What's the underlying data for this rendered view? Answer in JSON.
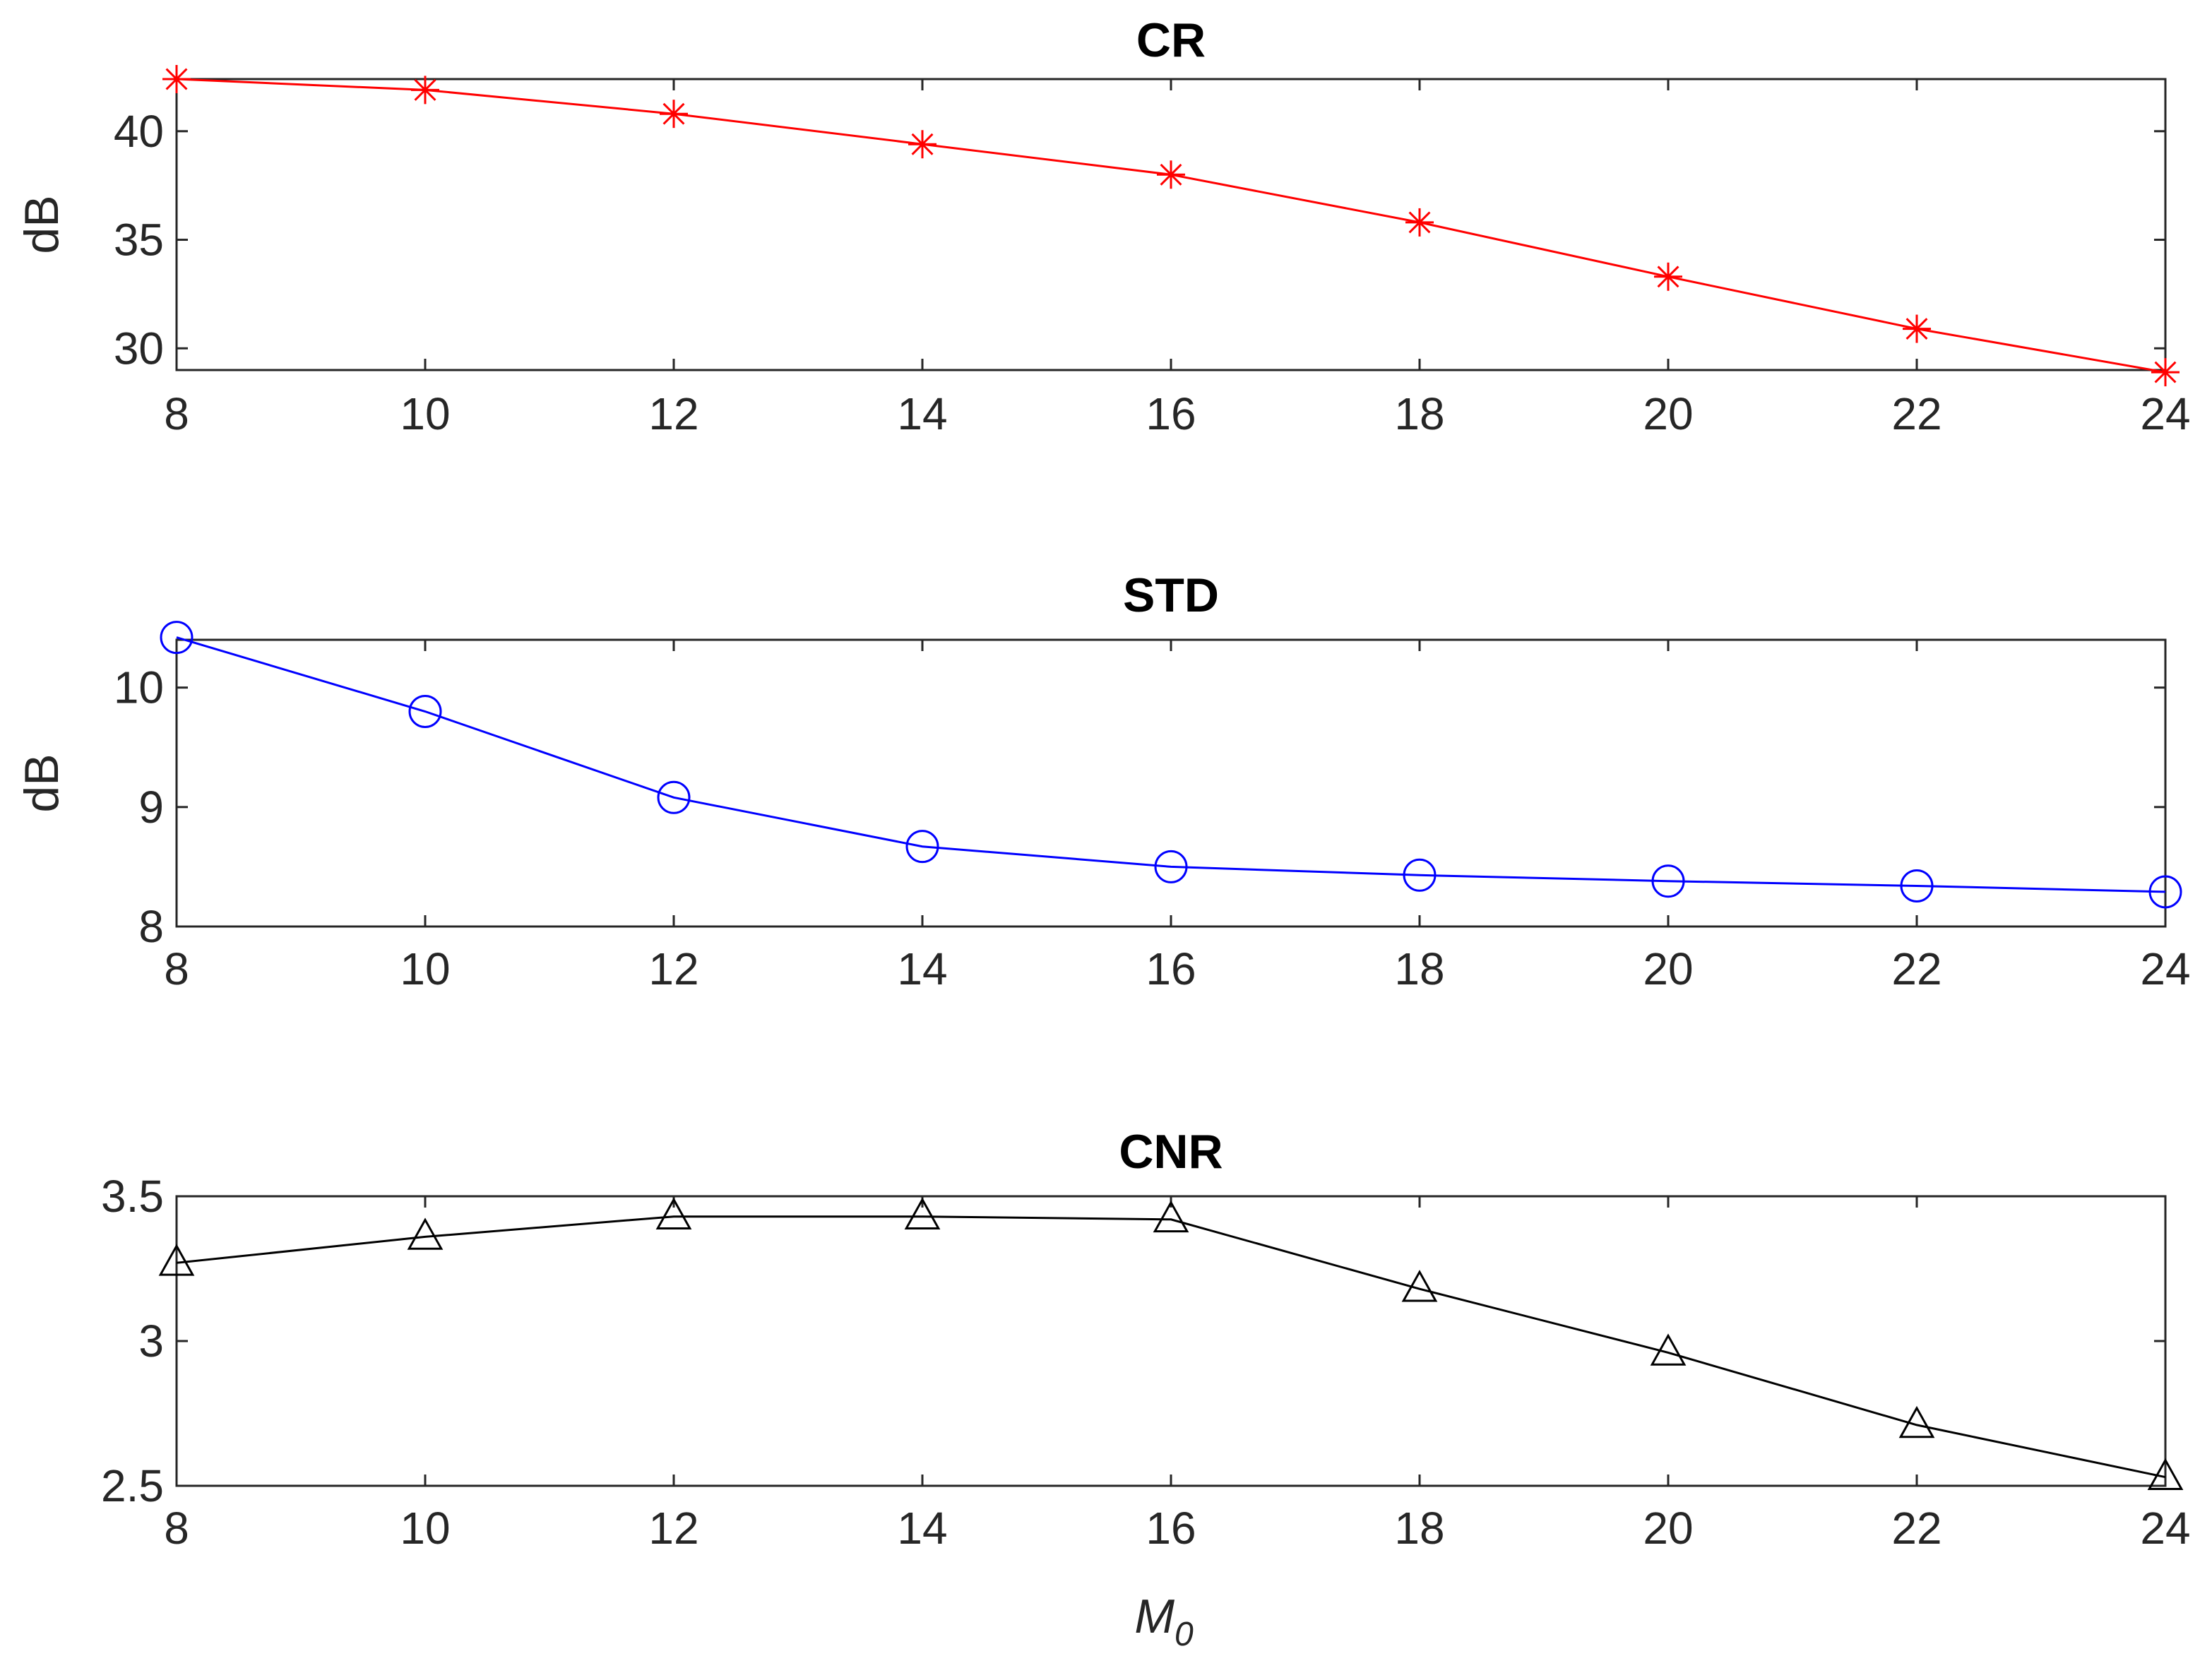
{
  "chart_data": [
    {
      "type": "line",
      "title": "CR",
      "xlabel": "",
      "ylabel": "dB",
      "x": [
        8,
        10,
        12,
        14,
        16,
        18,
        20,
        22,
        24
      ],
      "xlim": [
        8,
        24
      ],
      "ylim": [
        29,
        42.4
      ],
      "xticks": [
        8,
        10,
        12,
        14,
        16,
        18,
        20,
        22,
        24
      ],
      "yticks": [
        30,
        35,
        40
      ],
      "ytick_labels": [
        "30",
        "35",
        "40"
      ],
      "grid": false,
      "series": [
        {
          "name": "CR",
          "values": [
            42.4,
            41.9,
            40.8,
            39.4,
            38.0,
            35.8,
            33.3,
            30.9,
            28.9
          ],
          "color": "#ff0000",
          "marker": "asterisk"
        }
      ]
    },
    {
      "type": "line",
      "title": "STD",
      "xlabel": "",
      "ylabel": "dB",
      "x": [
        8,
        10,
        12,
        14,
        16,
        18,
        20,
        22,
        24
      ],
      "xlim": [
        8,
        24
      ],
      "ylim": [
        8,
        10.4
      ],
      "xticks": [
        8,
        10,
        12,
        14,
        16,
        18,
        20,
        22,
        24
      ],
      "yticks": [
        8,
        9,
        10
      ],
      "ytick_labels": [
        "8",
        "9",
        "10"
      ],
      "grid": false,
      "series": [
        {
          "name": "STD",
          "values": [
            10.42,
            9.8,
            9.08,
            8.67,
            8.5,
            8.43,
            8.38,
            8.34,
            8.29
          ],
          "color": "#0000ff",
          "marker": "circle"
        }
      ]
    },
    {
      "type": "line",
      "title": "CNR",
      "xlabel": "M0",
      "ylabel": "",
      "x": [
        8,
        10,
        12,
        14,
        16,
        18,
        20,
        22,
        24
      ],
      "xlim": [
        8,
        24
      ],
      "ylim": [
        2.5,
        3.5
      ],
      "xticks": [
        8,
        10,
        12,
        14,
        16,
        18,
        20,
        22,
        24
      ],
      "yticks": [
        2.5,
        3,
        3.5
      ],
      "ytick_labels": [
        "2.5",
        "3",
        "3.5"
      ],
      "grid": false,
      "series": [
        {
          "name": "CNR",
          "values": [
            3.27,
            3.36,
            3.43,
            3.43,
            3.42,
            3.18,
            2.96,
            2.71,
            2.53
          ],
          "color": "#000000",
          "marker": "triangle"
        }
      ]
    }
  ],
  "bottom_xlabel": {
    "main": "M",
    "subscript": "0"
  }
}
